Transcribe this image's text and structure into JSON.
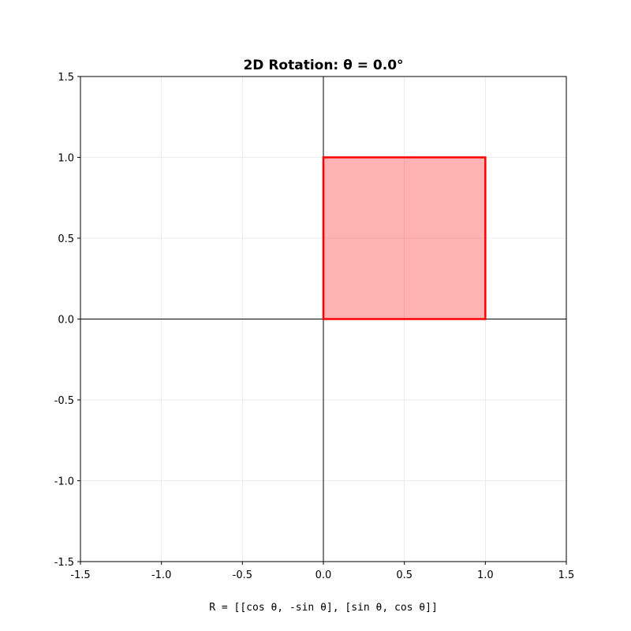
{
  "chart_data": {
    "type": "area",
    "title": "2D Rotation: θ = 0.0°",
    "xlabel": "",
    "ylabel": "",
    "xlim": [
      -1.5,
      1.5
    ],
    "ylim": [
      -1.5,
      1.5
    ],
    "x_ticks": [
      -1.5,
      -1.0,
      -0.5,
      0.0,
      0.5,
      1.0,
      1.5
    ],
    "y_ticks": [
      -1.5,
      -1.0,
      -0.5,
      0.0,
      0.5,
      1.0,
      1.5
    ],
    "x_tick_labels": [
      "-1.5",
      "-1.0",
      "-0.5",
      "0.0",
      "0.5",
      "1.0",
      "1.5"
    ],
    "y_tick_labels": [
      "-1.5",
      "-1.0",
      "-0.5",
      "0.0",
      "0.5",
      "1.0",
      "1.5"
    ],
    "grid": true,
    "axis_lines_through_origin": true,
    "series": [
      {
        "shape": "polygon",
        "points": [
          [
            0,
            0
          ],
          [
            1,
            0
          ],
          [
            1,
            1
          ],
          [
            0,
            1
          ]
        ],
        "edge_color": "#ff0000",
        "fill_color": "#ff0000",
        "fill_opacity": 0.3
      }
    ],
    "annotation": "R = [[cos θ, -sin θ], [sin θ, cos θ]]"
  },
  "colors": {
    "grid": "#e6e6e6",
    "axis": "#000000",
    "background": "#ffffff"
  }
}
